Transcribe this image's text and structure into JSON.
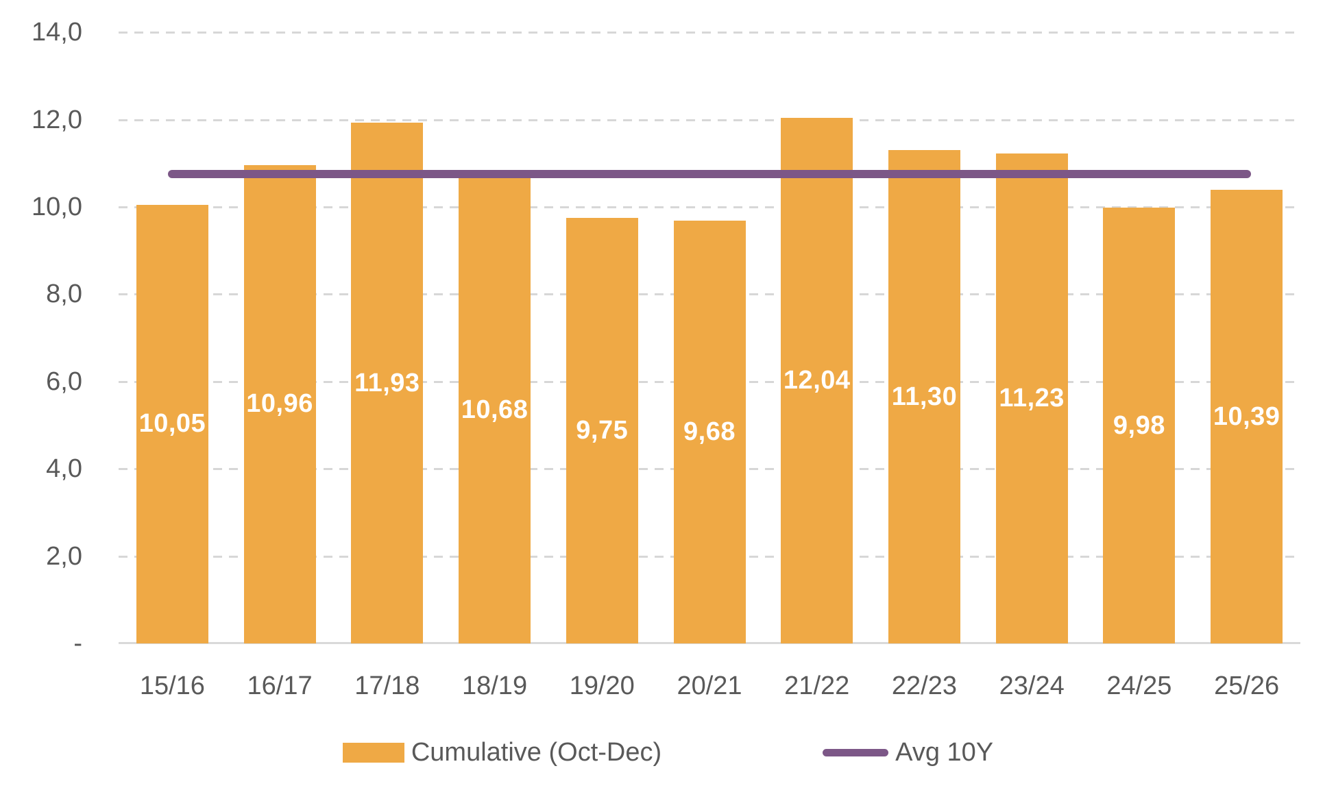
{
  "chart_data": {
    "type": "bar",
    "title": "",
    "categories": [
      "15/16",
      "16/17",
      "17/18",
      "18/19",
      "19/20",
      "20/21",
      "21/22",
      "22/23",
      "23/24",
      "24/25",
      "25/26"
    ],
    "series": [
      {
        "name": "Cumulative (Oct-Dec)",
        "type": "bar",
        "color": "#EFA945",
        "values": [
          10.05,
          10.96,
          11.93,
          10.68,
          9.75,
          9.68,
          12.04,
          11.3,
          11.23,
          9.98,
          10.39
        ],
        "value_labels": [
          "10,05",
          "10,96",
          "11,93",
          "10,68",
          "9,75",
          "9,68",
          "12,04",
          "11,30",
          "11,23",
          "9,98",
          "10,39"
        ],
        "value_label_position": "inside-center",
        "value_label_color": "#ffffff"
      },
      {
        "name": "Avg 10Y",
        "type": "line",
        "color": "#7C5787",
        "value": 10.76
      }
    ],
    "ylim": [
      0,
      14
    ],
    "yticks": [
      {
        "value": 14,
        "label": "14,0"
      },
      {
        "value": 12,
        "label": "12,0"
      },
      {
        "value": 10,
        "label": "10,0"
      },
      {
        "value": 8,
        "label": "8,0"
      },
      {
        "value": 6,
        "label": "6,0"
      },
      {
        "value": 4,
        "label": "4,0"
      },
      {
        "value": 2,
        "label": "2,0"
      },
      {
        "value": 0,
        "label": "-"
      }
    ],
    "xlabel": "",
    "ylabel": "",
    "grid": "horizontal-dashed",
    "legend_position": "bottom-center",
    "decimal_separator": ","
  }
}
